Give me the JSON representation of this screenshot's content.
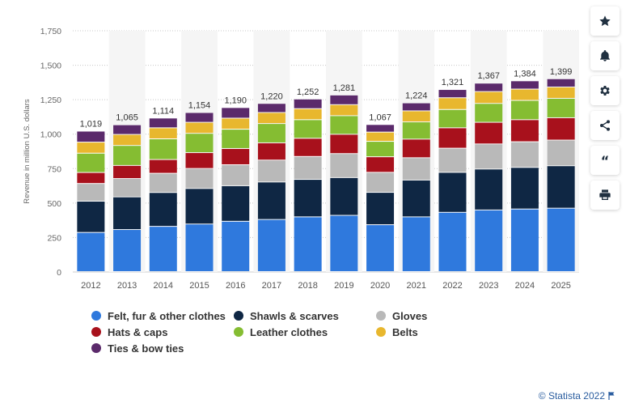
{
  "chart_data": {
    "type": "bar",
    "stacked": true,
    "ylabel": "Revenue in million U.S. dollars",
    "ylim": [
      0,
      1750
    ],
    "yticks": [
      0,
      250,
      500,
      750,
      "1,000",
      "1,250",
      "1,500",
      "1,750"
    ],
    "categories": [
      "2012",
      "2013",
      "2014",
      "2015",
      "2016",
      "2017",
      "2018",
      "2019",
      "2020",
      "2021",
      "2022",
      "2023",
      "2024",
      "2025"
    ],
    "totals": [
      1019,
      1065,
      1114,
      1154,
      1190,
      1220,
      1252,
      1281,
      1067,
      1224,
      1321,
      1367,
      1384,
      1399
    ],
    "total_labels": [
      "1,019",
      "1,065",
      "1,114",
      "1,154",
      "1,190",
      "1,220",
      "1,252",
      "1,281",
      "1,067",
      "1,224",
      "1,321",
      "1,367",
      "1,384",
      "1,399"
    ],
    "series": [
      {
        "name": "Felt, fur & other clothes",
        "color": "#2f79dd",
        "values": [
          284,
          305,
          328,
          345,
          365,
          378,
          397,
          408,
          340,
          397,
          430,
          447,
          454,
          460
        ]
      },
      {
        "name": "Shawls & scarves",
        "color": "#0f2744",
        "values": [
          227,
          237,
          246,
          258,
          258,
          272,
          272,
          274,
          235,
          267,
          290,
          297,
          302,
          308
        ]
      },
      {
        "name": "Gloves",
        "color": "#b9b9b9",
        "values": [
          128,
          133,
          139,
          145,
          152,
          159,
          166,
          174,
          145,
          162,
          175,
          182,
          186,
          186
        ]
      },
      {
        "name": "Hats & caps",
        "color": "#a8111c",
        "values": [
          80,
          95,
          100,
          115,
          118,
          125,
          132,
          140,
          113,
          135,
          148,
          157,
          160,
          162
        ]
      },
      {
        "name": "Leather clothes",
        "color": "#85bd32",
        "values": [
          140,
          145,
          150,
          140,
          140,
          140,
          135,
          135,
          112,
          125,
          133,
          137,
          140,
          141
        ]
      },
      {
        "name": "Belts",
        "color": "#e8b72e",
        "values": [
          80,
          80,
          80,
          80,
          80,
          80,
          80,
          80,
          67,
          80,
          85,
          86,
          82,
          82
        ]
      },
      {
        "name": "Ties & bow ties",
        "color": "#5b2a6b",
        "values": [
          80,
          70,
          71,
          71,
          77,
          66,
          70,
          70,
          55,
          58,
          60,
          61,
          60,
          60
        ]
      }
    ],
    "grid": true,
    "legend_position": "bottom"
  },
  "legend": {
    "items": [
      {
        "label": "Felt, fur & other clothes",
        "color": "#2f79dd"
      },
      {
        "label": "Shawls & scarves",
        "color": "#0f2744"
      },
      {
        "label": "Gloves",
        "color": "#b9b9b9"
      },
      {
        "label": "Hats & caps",
        "color": "#a8111c"
      },
      {
        "label": "Leather clothes",
        "color": "#85bd32"
      },
      {
        "label": "Belts",
        "color": "#e8b72e"
      },
      {
        "label": "Ties & bow ties",
        "color": "#5b2a6b"
      }
    ]
  },
  "sidebar": {
    "buttons": [
      {
        "name": "star-icon"
      },
      {
        "name": "bell-icon"
      },
      {
        "name": "gear-icon"
      },
      {
        "name": "share-icon"
      },
      {
        "name": "quote-icon",
        "glyph": "“"
      },
      {
        "name": "print-icon"
      }
    ]
  },
  "footer": {
    "text": "© Statista 2022"
  }
}
